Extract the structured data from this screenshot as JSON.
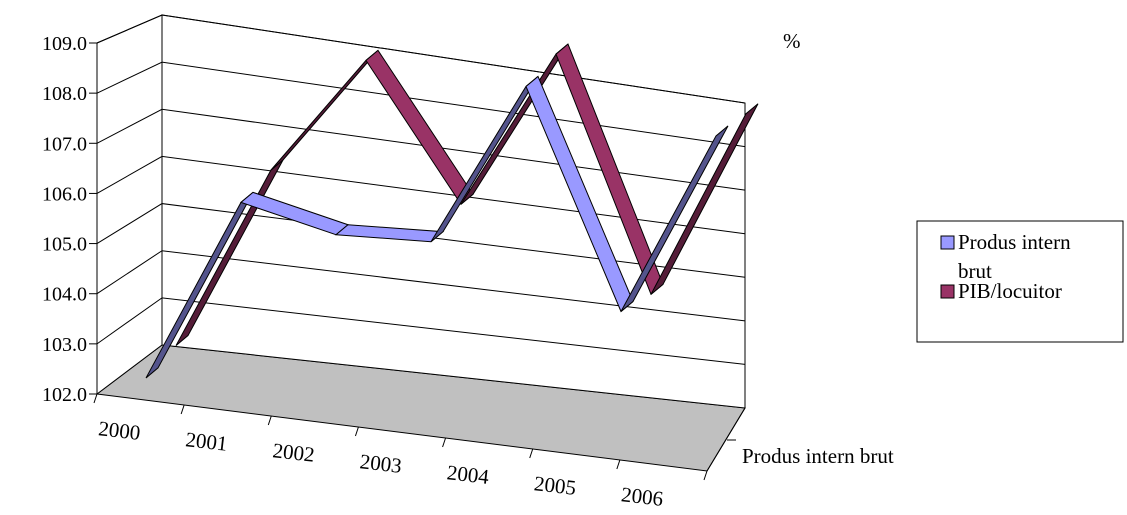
{
  "chart_data": {
    "type": "line",
    "style": "3d-ribbon",
    "categories": [
      "2000",
      "2001",
      "2002",
      "2003",
      "2004",
      "2005",
      "2006"
    ],
    "series": [
      {
        "name": "Produs intern brut",
        "values": [
          102.1,
          105.7,
          105.2,
          105.2,
          108.4,
          104.1,
          107.7
        ],
        "color": "#9999ff"
      },
      {
        "name": "PIB/locuitor",
        "values": [
          102.6,
          106.2,
          108.5,
          105.8,
          108.9,
          104.3,
          108.0
        ],
        "color": "#993366"
      }
    ],
    "y_ticks": [
      "102.0",
      "103.0",
      "104.0",
      "105.0",
      "106.0",
      "107.0",
      "108.0",
      "109.0"
    ],
    "ylim": [
      102.0,
      109.0
    ],
    "y_unit": "%",
    "depth_axis_label": "Produs intern brut",
    "floor_color": "#c0c0c0",
    "grid": true,
    "legend_position": "right"
  }
}
